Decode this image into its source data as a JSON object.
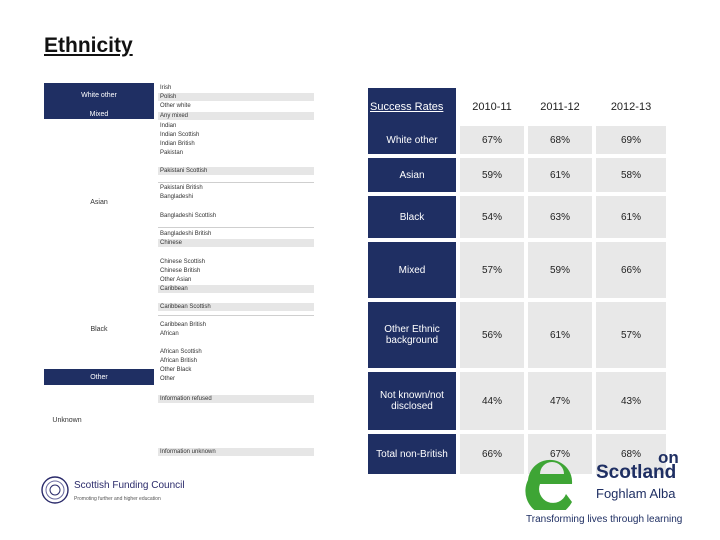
{
  "title": "Ethnicity",
  "left_table": {
    "categories": [
      {
        "label": "White other"
      },
      {
        "label": "Mixed"
      },
      {
        "label": "Asian"
      },
      {
        "label": "Black"
      },
      {
        "label": "Other"
      },
      {
        "label": "Unknown"
      }
    ],
    "subcategories": [
      "Irish",
      "Polish",
      "Other white",
      "Any mixed",
      "Indian",
      "Indian Scottish",
      "Indian British",
      "Pakistan",
      "Pakistani Scottish",
      "Pakistani British",
      "Bangladeshi",
      "Bangladeshi Scottish",
      "Bangladeshi British",
      "Chinese",
      "Chinese Scottish",
      "Chinese British",
      "Other Asian",
      "Caribbean",
      "Caribbean Scottish",
      "Caribbean British",
      "African",
      "African Scottish",
      "African British",
      "Other Black",
      "Other",
      "Information refused",
      "Information unknown"
    ]
  },
  "rate_table": {
    "header": {
      "label": "Success Rates",
      "years": [
        "2010-11",
        "2011-12",
        "2012-13"
      ]
    },
    "rows": [
      {
        "label": "White other",
        "values": [
          "67%",
          "68%",
          "69%"
        ]
      },
      {
        "label": "Asian",
        "values": [
          "59%",
          "61%",
          "58%"
        ]
      },
      {
        "label": "Black",
        "values": [
          "54%",
          "63%",
          "61%"
        ]
      },
      {
        "label": "Mixed",
        "values": [
          "57%",
          "59%",
          "66%"
        ]
      },
      {
        "label": "Other Ethnic background",
        "values": [
          "56%",
          "61%",
          "57%"
        ]
      },
      {
        "label": "Not known/not disclosed",
        "values": [
          "44%",
          "47%",
          "43%"
        ]
      },
      {
        "label": "Total non-British",
        "values": [
          "66%",
          "67%",
          "68%"
        ]
      }
    ]
  },
  "logos": {
    "sfc": {
      "name": "Scottish Funding Council",
      "tagline": "Promoting further and higher education"
    },
    "es": {
      "partial": "on",
      "name": "Scotland",
      "gaelic": "Foghlam Alba",
      "tagline": "Transforming lives through learning"
    }
  },
  "colors": {
    "navy": "#1f2f63",
    "grey": "#e8e8e8",
    "green": "#3ea535"
  }
}
